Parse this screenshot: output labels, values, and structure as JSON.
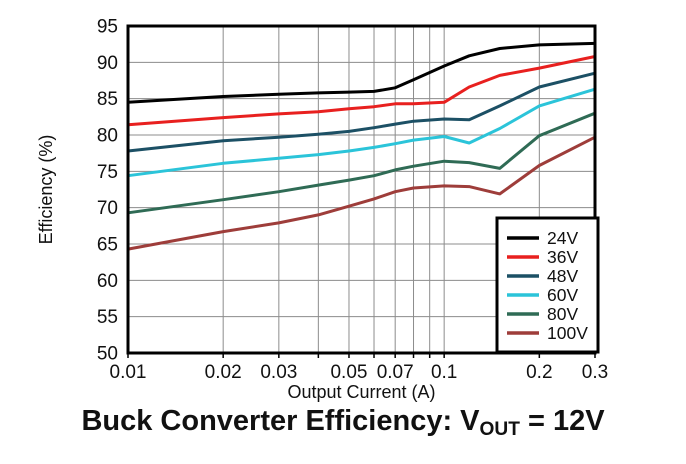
{
  "chart_data": {
    "type": "line",
    "title": "",
    "xlabel": "Output Current (A)",
    "ylabel": "Efficiency (%)",
    "x_scale": "log",
    "xlim": [
      0.01,
      0.3
    ],
    "ylim": [
      50,
      95
    ],
    "y_ticks": [
      50,
      55,
      60,
      65,
      70,
      75,
      80,
      85,
      90,
      95
    ],
    "x_major_ticks": [
      0.01,
      0.02,
      0.03,
      0.05,
      0.07,
      0.1,
      0.2,
      0.3
    ],
    "x_major_labels": [
      "0.01",
      "0.02",
      "0.03",
      "0.05",
      "0.07",
      "0.1",
      "0.2",
      "0.3"
    ],
    "x_gridlines": [
      0.02,
      0.03,
      0.04,
      0.05,
      0.06,
      0.07,
      0.08,
      0.09,
      0.1,
      0.2
    ],
    "grid_on": true,
    "grid_color": "#8c8c8c",
    "axis_color": "#000000",
    "legend_position": "bottom-right",
    "x": [
      0.01,
      0.02,
      0.03,
      0.04,
      0.05,
      0.06,
      0.07,
      0.08,
      0.1,
      0.12,
      0.15,
      0.2,
      0.3
    ],
    "series": [
      {
        "name": "24V",
        "color": "#000000",
        "values": [
          84.5,
          85.3,
          85.6,
          85.8,
          85.9,
          86.0,
          86.5,
          87.6,
          89.5,
          90.9,
          91.9,
          92.4,
          92.6
        ]
      },
      {
        "name": "36V",
        "color": "#e8201f",
        "values": [
          81.4,
          82.4,
          82.9,
          83.2,
          83.6,
          83.9,
          84.3,
          84.3,
          84.5,
          86.6,
          88.2,
          89.2,
          90.8
        ]
      },
      {
        "name": "48V",
        "color": "#1c5065",
        "values": [
          77.8,
          79.2,
          79.7,
          80.1,
          80.5,
          81.0,
          81.5,
          81.9,
          82.2,
          82.1,
          84.0,
          86.6,
          88.5
        ]
      },
      {
        "name": "60V",
        "color": "#2bc4d9",
        "values": [
          74.4,
          76.1,
          76.8,
          77.3,
          77.8,
          78.3,
          78.8,
          79.3,
          79.8,
          78.9,
          80.9,
          84.0,
          86.3
        ]
      },
      {
        "name": "80V",
        "color": "#2f6b55",
        "values": [
          69.3,
          71.1,
          72.2,
          73.1,
          73.8,
          74.4,
          75.2,
          75.7,
          76.4,
          76.2,
          75.4,
          79.9,
          83.0
        ]
      },
      {
        "name": "100V",
        "color": "#9e3d3a",
        "values": [
          64.3,
          66.7,
          67.9,
          69.0,
          70.2,
          71.2,
          72.2,
          72.7,
          73.0,
          72.9,
          71.9,
          75.8,
          79.7
        ]
      }
    ]
  },
  "caption": {
    "prefix": "Buck Converter Efficiency: V",
    "subscript": "OUT",
    "suffix": " = 12V"
  }
}
